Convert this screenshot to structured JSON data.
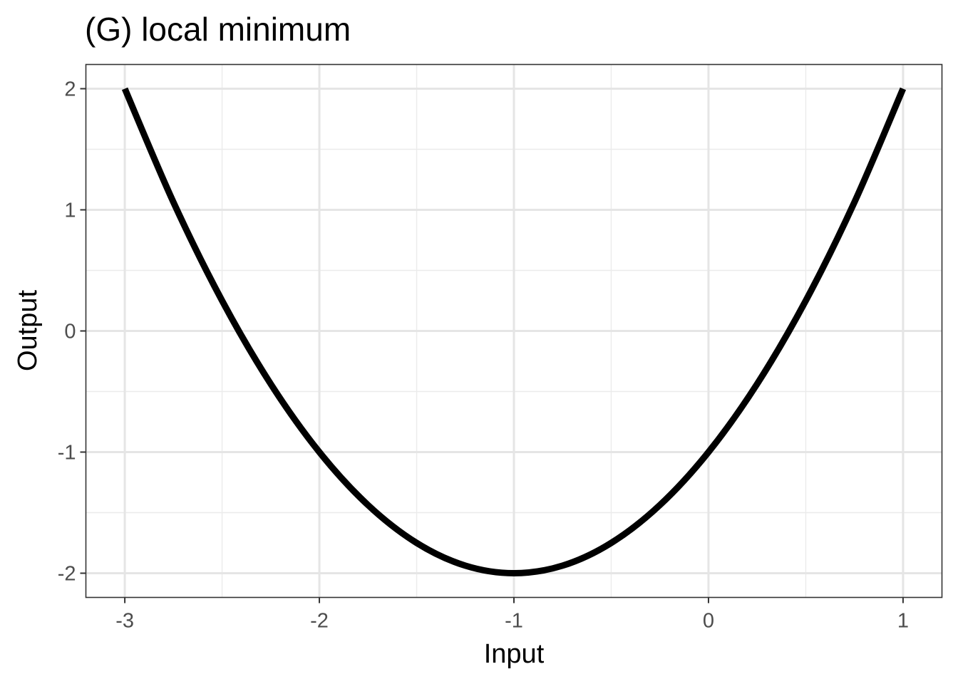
{
  "chart_data": {
    "type": "line",
    "title": "(G) local minimum",
    "xlabel": "Input",
    "ylabel": "Output",
    "xlim": [
      -3.2,
      1.2
    ],
    "ylim": [
      -2.2,
      2.2
    ],
    "x_ticks": [
      -3,
      -2,
      -1,
      0,
      1
    ],
    "y_ticks": [
      -2,
      -1,
      0,
      1,
      2
    ],
    "x_tick_labels": [
      "-3",
      "-2",
      "-1",
      "0",
      "1"
    ],
    "y_tick_labels": [
      "-2",
      "-1",
      "0",
      "1",
      "2"
    ],
    "grid": true,
    "series": [
      {
        "x": [
          -3,
          -2.75,
          -2.5,
          -2.25,
          -2,
          -1.75,
          -1.5,
          -1.25,
          -1,
          -0.75,
          -0.5,
          -0.25,
          0,
          0.25,
          0.5,
          0.75,
          1
        ],
        "y": [
          2,
          1.0625,
          0.25,
          -0.4375,
          -1,
          -1.4375,
          -1.75,
          -1.9375,
          -2,
          -1.9375,
          -1.75,
          -1.4375,
          -1,
          -0.4375,
          0.25,
          1.0625,
          2
        ],
        "color": "#000000"
      }
    ]
  }
}
